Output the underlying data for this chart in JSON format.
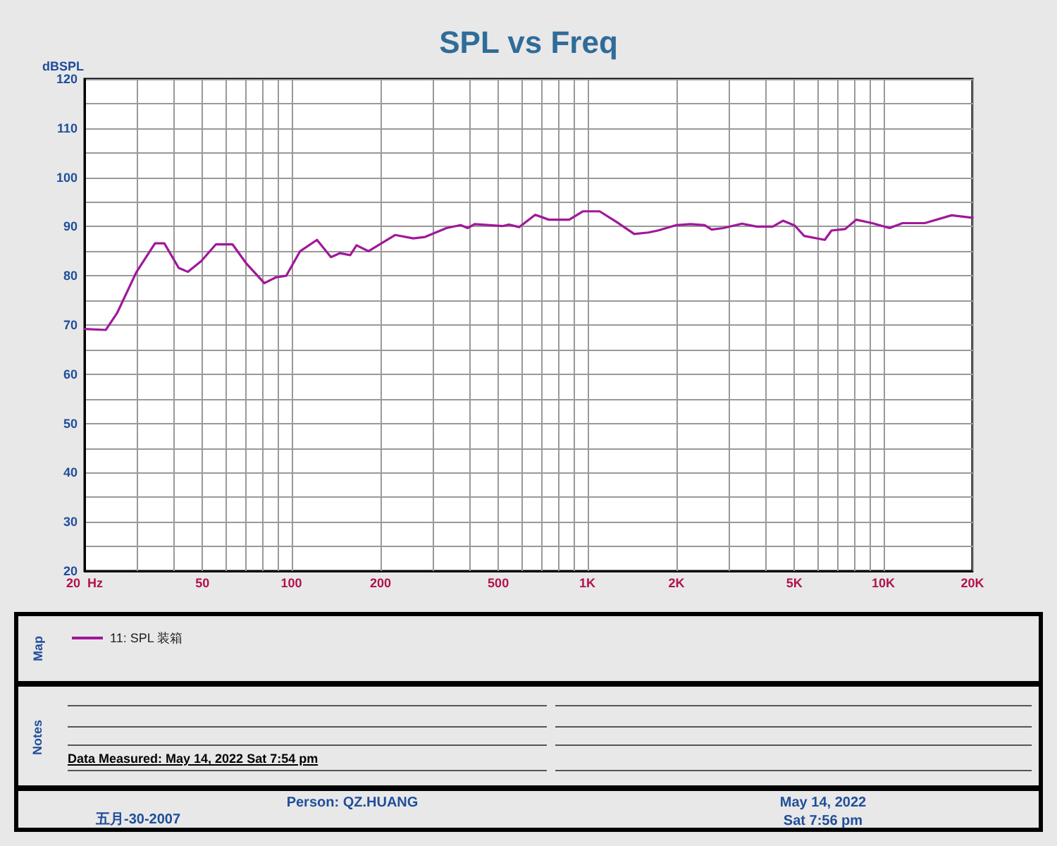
{
  "chart_data": {
    "type": "line",
    "title": "SPL vs Freq",
    "ylabel": "dBSPL",
    "log": "x",
    "grid": true,
    "legend": "bottom left",
    "marker": "none",
    "line_style": "solid",
    "xlim": [
      20,
      20000
    ],
    "ylim": [
      20,
      120
    ],
    "xticks": [
      {
        "value": 20,
        "label": "20  Hz"
      },
      {
        "value": 30,
        "label": null
      },
      {
        "value": 40,
        "label": null
      },
      50,
      {
        "value": 60,
        "label": null
      },
      {
        "value": 70,
        "label": null
      },
      {
        "value": 80,
        "label": null
      },
      {
        "value": 90,
        "label": null
      },
      100,
      200,
      {
        "value": 300,
        "label": null
      },
      {
        "value": 400,
        "label": null
      },
      500,
      {
        "value": 600,
        "label": null
      },
      {
        "value": 700,
        "label": null
      },
      {
        "value": 800,
        "label": null
      },
      {
        "value": 900,
        "label": null
      },
      {
        "value": 1000,
        "label": "1K"
      },
      {
        "value": 2000,
        "label": "2K"
      },
      {
        "value": 3000,
        "label": null
      },
      {
        "value": 4000,
        "label": null
      },
      {
        "value": 5000,
        "label": "5K"
      },
      {
        "value": 6000,
        "label": null
      },
      {
        "value": 7000,
        "label": null
      },
      {
        "value": 8000,
        "label": null
      },
      {
        "value": 9000,
        "label": null
      },
      {
        "value": 10000,
        "label": "10K"
      },
      {
        "value": 20000,
        "label": "20K"
      }
    ],
    "yticks": [
      20,
      {
        "value": 25,
        "label": null
      },
      30,
      {
        "value": 35,
        "label": null
      },
      40,
      {
        "value": 45,
        "label": null
      },
      50,
      {
        "value": 55,
        "label": null
      },
      60,
      {
        "value": 65,
        "label": null
      },
      70,
      {
        "value": 75,
        "label": null
      },
      80,
      {
        "value": 85,
        "label": null
      },
      90,
      {
        "value": 95,
        "label": null
      },
      100,
      {
        "value": 105,
        "label": null
      },
      110,
      {
        "value": 115,
        "label": null
      },
      120
    ],
    "annotations": [
      "Map",
      "Notes",
      "Data Measured: May 14, 2022  Sat  7:54 pm",
      "五月-30-2007",
      "Person: QZ.HUANG",
      "May 14, 2022",
      "Sat  7:56 pm"
    ],
    "series": [
      {
        "name": "11: SPL 装箱",
        "color": "#a0189a",
        "x": [
          20,
          23.6,
          25.8,
          29.9,
          34.6,
          37.2,
          41.6,
          44.7,
          49.6,
          55.6,
          63.2,
          70.2,
          81,
          88.7,
          96,
          107,
          122,
          136,
          146,
          158,
          166,
          182,
          224,
          258,
          283,
          334,
          373,
          394,
          416,
          516,
          543,
          589,
          666,
          741,
          868,
          965,
          1100,
          1250,
          1440,
          1610,
          1730,
          2000,
          2230,
          2490,
          2630,
          2880,
          3330,
          3730,
          4230,
          4580,
          5020,
          5400,
          6340,
          6680,
          7430,
          8100,
          9170,
          10500,
          11600,
          13800,
          17000,
          20000
        ],
        "values": [
          69.2,
          69.0,
          72.5,
          80.7,
          86.6,
          86.6,
          81.6,
          80.8,
          83.0,
          86.4,
          86.4,
          82.6,
          78.5,
          79.7,
          80.0,
          85.0,
          87.3,
          83.8,
          84.6,
          84.2,
          86.2,
          85.0,
          88.3,
          87.6,
          87.9,
          89.7,
          90.3,
          89.7,
          90.5,
          90.1,
          90.4,
          89.9,
          92.4,
          91.4,
          91.4,
          93.1,
          93.1,
          91.0,
          88.5,
          88.8,
          89.2,
          90.3,
          90.5,
          90.3,
          89.4,
          89.7,
          90.6,
          90.0,
          90.0,
          91.2,
          90.2,
          88.1,
          87.3,
          89.2,
          89.5,
          91.4,
          90.7,
          89.7,
          90.7,
          90.7,
          92.3,
          91.8
        ]
      }
    ]
  }
}
